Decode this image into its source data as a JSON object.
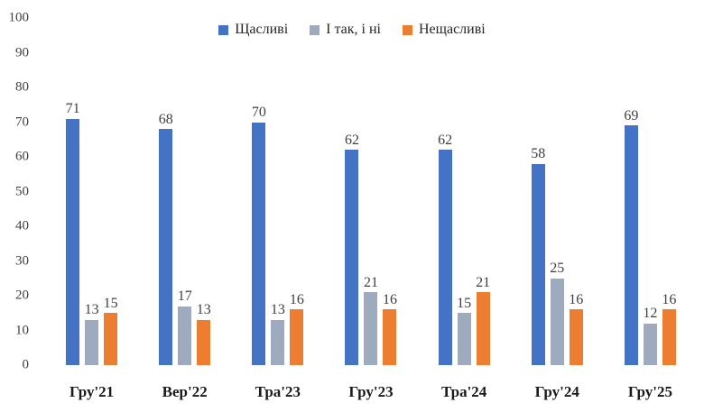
{
  "chart_data": {
    "type": "bar",
    "title": "",
    "xlabel": "",
    "ylabel": "",
    "grid": false,
    "legend_position": "top",
    "data_labels": true,
    "ylim": [
      0,
      100
    ],
    "yticks": [
      0,
      10,
      20,
      30,
      40,
      50,
      60,
      70,
      80,
      90,
      100
    ],
    "categories": [
      "Гру'21",
      "Вер'22",
      "Тра'23",
      "Гру'23",
      "Тра'24",
      "Гру'24",
      "Гру'25"
    ],
    "series": [
      {
        "name": "Щасливі",
        "color": "#4472C4",
        "values": [
          71,
          68,
          70,
          62,
          62,
          58,
          69
        ]
      },
      {
        "name": "І так, і ні",
        "color": "#9EABBF",
        "values": [
          13,
          17,
          13,
          21,
          15,
          25,
          12
        ]
      },
      {
        "name": "Нещасливі",
        "color": "#ED7D31",
        "values": [
          15,
          13,
          16,
          16,
          21,
          16,
          16
        ]
      }
    ]
  }
}
